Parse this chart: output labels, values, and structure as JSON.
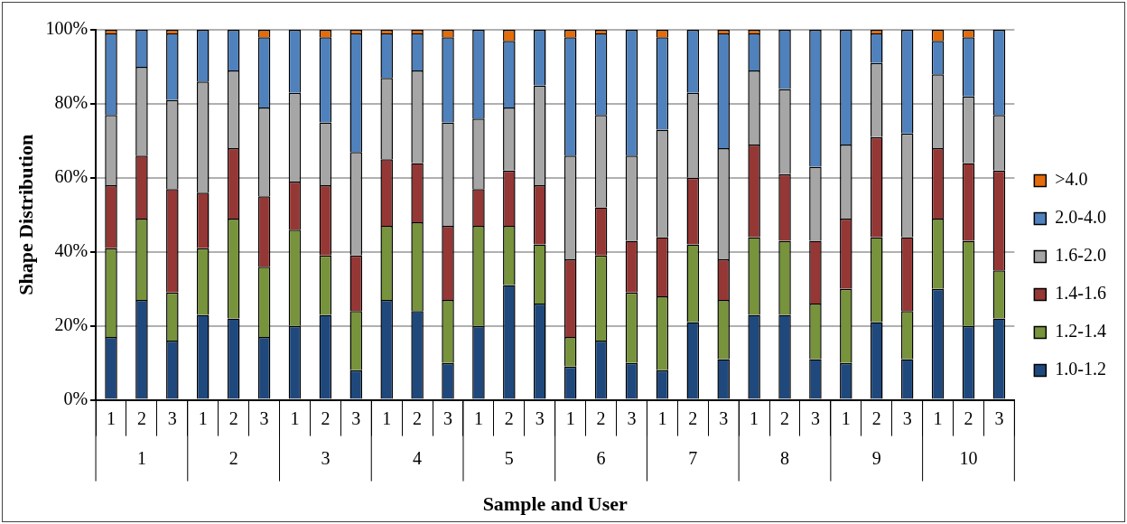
{
  "chart_data": {
    "type": "bar",
    "stacked": true,
    "xlabel": "Sample and User",
    "ylabel": "Shape Distribution",
    "categories": [
      "1",
      "2",
      "3",
      "1",
      "2",
      "3",
      "1",
      "2",
      "3",
      "1",
      "2",
      "3",
      "1",
      "2",
      "3",
      "1",
      "2",
      "3",
      "1",
      "2",
      "3",
      "1",
      "2",
      "3",
      "1",
      "2",
      "3",
      "1",
      "2",
      "3"
    ],
    "annotations": [
      "1",
      "2",
      "3",
      "4",
      "5",
      "6",
      "7",
      "8",
      "9",
      "10"
    ],
    "series": [
      {
        "name": "1.0-1.2",
        "color": "#1f497d",
        "values": [
          17,
          27,
          16,
          23,
          22,
          17,
          20,
          23,
          8,
          27,
          24,
          10,
          20,
          31,
          26,
          9,
          16,
          10,
          8,
          21,
          11,
          23,
          23,
          11,
          10,
          21,
          11,
          30,
          20,
          22
        ]
      },
      {
        "name": "1.2-1.4",
        "color": "#77933c",
        "values": [
          24,
          22,
          13,
          18,
          27,
          19,
          26,
          16,
          16,
          20,
          24,
          17,
          27,
          16,
          16,
          8,
          23,
          19,
          20,
          21,
          16,
          21,
          20,
          15,
          20,
          23,
          13,
          19,
          23,
          13
        ]
      },
      {
        "name": "1.4-1.6",
        "color": "#953735",
        "values": [
          17,
          17,
          28,
          15,
          19,
          19,
          13,
          19,
          15,
          18,
          16,
          20,
          10,
          15,
          16,
          21,
          13,
          14,
          16,
          18,
          11,
          25,
          18,
          17,
          19,
          27,
          20,
          19,
          21,
          27
        ]
      },
      {
        "name": "1.6-2.0",
        "color": "#a6a6a6",
        "values": [
          19,
          24,
          24,
          30,
          21,
          24,
          24,
          17,
          28,
          22,
          25,
          28,
          19,
          17,
          27,
          28,
          25,
          23,
          29,
          23,
          30,
          20,
          23,
          20,
          20,
          20,
          28,
          20,
          18,
          15
        ]
      },
      {
        "name": "2.0-4.0",
        "color": "#4f81bd",
        "values": [
          22,
          10,
          18,
          14,
          11,
          19,
          17,
          23,
          32,
          12,
          10,
          23,
          24,
          18,
          15,
          32,
          22,
          34,
          25,
          17,
          31,
          10,
          16,
          37,
          31,
          8,
          28,
          9,
          16,
          23
        ]
      },
      {
        "name": ">4.0",
        "color": "#e46c0a",
        "values": [
          1,
          0,
          1,
          0,
          0,
          2,
          0,
          2,
          1,
          1,
          1,
          2,
          0,
          3,
          0,
          2,
          1,
          0,
          2,
          0,
          1,
          1,
          0,
          0,
          0,
          1,
          0,
          3,
          2,
          0
        ]
      }
    ],
    "ylim": [
      0,
      100
    ],
    "yticks": [
      {
        "value": 0,
        "label": "0%"
      },
      {
        "value": 20,
        "label": "20%"
      },
      {
        "value": 40,
        "label": "40%"
      },
      {
        "value": 60,
        "label": "60%"
      },
      {
        "value": 80,
        "label": "80%"
      },
      {
        "value": 100,
        "label": "100%"
      }
    ],
    "grid": "y",
    "legend": "right"
  }
}
